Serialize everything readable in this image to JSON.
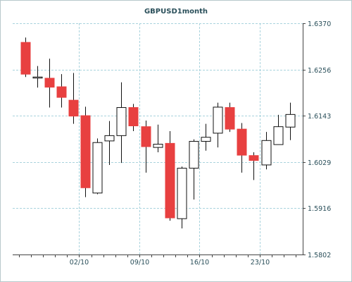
{
  "chart_data": {
    "type": "candlestick",
    "title": "GBPUSD1month",
    "xlabel": "",
    "ylabel": "",
    "ylim": [
      1.5802,
      1.637
    ],
    "y_ticks": [
      "1.6370",
      "1.6256",
      "1.6143",
      "1.6029",
      "1.5916",
      "1.5802"
    ],
    "x_ticks": [
      {
        "label": "02/10",
        "index": 4.5
      },
      {
        "label": "09/10",
        "index": 9.5
      },
      {
        "label": "16/10",
        "index": 14.5
      },
      {
        "label": "23/10",
        "index": 19.5
      }
    ],
    "grid": true,
    "colors": {
      "up": "#ffffff",
      "down": "#e84040",
      "border": "#111111",
      "grid": "#a9d3dd",
      "text": "#2a4f5a"
    },
    "candles": [
      {
        "open": 1.6323,
        "high": 1.6335,
        "low": 1.6238,
        "close": 1.6245
      },
      {
        "open": 1.6238,
        "high": 1.6265,
        "low": 1.6212,
        "close": 1.6238
      },
      {
        "open": 1.6235,
        "high": 1.6283,
        "low": 1.6163,
        "close": 1.6213
      },
      {
        "open": 1.6214,
        "high": 1.6245,
        "low": 1.6163,
        "close": 1.6188
      },
      {
        "open": 1.6181,
        "high": 1.6248,
        "low": 1.6123,
        "close": 1.6142
      },
      {
        "open": 1.6143,
        "high": 1.6165,
        "low": 1.5943,
        "close": 1.5966
      },
      {
        "open": 1.5953,
        "high": 1.6087,
        "low": 1.595,
        "close": 1.6077
      },
      {
        "open": 1.6081,
        "high": 1.613,
        "low": 1.6022,
        "close": 1.6094
      },
      {
        "open": 1.6094,
        "high": 1.6225,
        "low": 1.6027,
        "close": 1.6163
      },
      {
        "open": 1.6163,
        "high": 1.6172,
        "low": 1.6105,
        "close": 1.6118
      },
      {
        "open": 1.6116,
        "high": 1.6131,
        "low": 1.6003,
        "close": 1.6067
      },
      {
        "open": 1.6065,
        "high": 1.6121,
        "low": 1.6053,
        "close": 1.6073
      },
      {
        "open": 1.6075,
        "high": 1.6105,
        "low": 1.5885,
        "close": 1.5892
      },
      {
        "open": 1.589,
        "high": 1.6018,
        "low": 1.5866,
        "close": 1.6014
      },
      {
        "open": 1.6014,
        "high": 1.6085,
        "low": 1.5937,
        "close": 1.608
      },
      {
        "open": 1.608,
        "high": 1.6123,
        "low": 1.6057,
        "close": 1.609
      },
      {
        "open": 1.61,
        "high": 1.6175,
        "low": 1.6065,
        "close": 1.6164
      },
      {
        "open": 1.6163,
        "high": 1.6175,
        "low": 1.6103,
        "close": 1.611
      },
      {
        "open": 1.611,
        "high": 1.6125,
        "low": 1.6003,
        "close": 1.6046
      },
      {
        "open": 1.6045,
        "high": 1.6053,
        "low": 1.5985,
        "close": 1.6033
      },
      {
        "open": 1.6022,
        "high": 1.6103,
        "low": 1.6011,
        "close": 1.6082
      },
      {
        "open": 1.6072,
        "high": 1.6145,
        "low": 1.6072,
        "close": 1.6116
      },
      {
        "open": 1.6115,
        "high": 1.6175,
        "low": 1.6083,
        "close": 1.6146
      }
    ]
  }
}
